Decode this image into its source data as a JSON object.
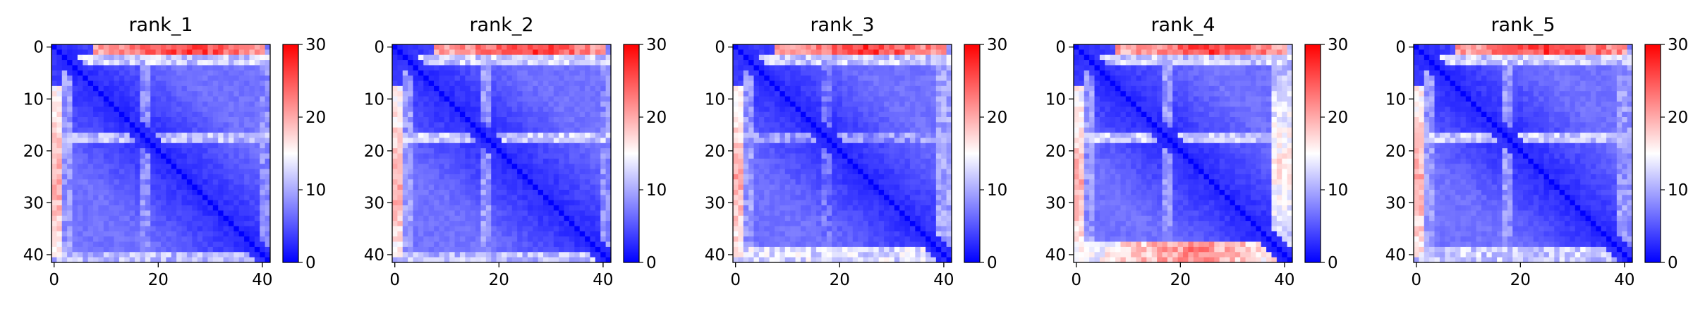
{
  "colorbar": {
    "colormap": "bwr",
    "color_low": "#0000ff",
    "color_mid": "#ffffff",
    "color_high": "#ff0000",
    "vmin": 0,
    "vmax": 30,
    "ticks": [
      "0",
      "10",
      "20",
      "30"
    ]
  },
  "chart_data": [
    {
      "type": "heatmap",
      "title": "rank_1",
      "n": 42,
      "xlim": [
        -0.5,
        41.5
      ],
      "ylim": [
        41.5,
        -0.5
      ],
      "xticks": [
        "0",
        "20",
        "40"
      ],
      "yticks": [
        "0",
        "10",
        "20",
        "30",
        "40"
      ],
      "bands": [
        {
          "row_start": 0,
          "row_end": 1,
          "col_start": 8,
          "col_end": 40,
          "value": 20,
          "peak": 27
        },
        {
          "row_start": 2,
          "row_end": 3,
          "col_start": 5,
          "col_end": 41,
          "value": 12
        },
        {
          "row_start": 17,
          "row_end": 18,
          "col_start": 0,
          "col_end": 41,
          "value": 11
        },
        {
          "row_start": 40,
          "row_end": 41,
          "col_start": 0,
          "col_end": 41,
          "value": 11
        }
      ]
    },
    {
      "type": "heatmap",
      "title": "rank_2",
      "n": 42,
      "xlim": [
        -0.5,
        41.5
      ],
      "ylim": [
        41.5,
        -0.5
      ],
      "xticks": [
        "0",
        "20",
        "40"
      ],
      "yticks": [
        "0",
        "10",
        "20",
        "30",
        "40"
      ],
      "bands": [
        {
          "row_start": 0,
          "row_end": 1,
          "col_start": 8,
          "col_end": 40,
          "value": 20,
          "peak": 27
        },
        {
          "row_start": 2,
          "row_end": 3,
          "col_start": 5,
          "col_end": 41,
          "value": 12
        },
        {
          "row_start": 17,
          "row_end": 18,
          "col_start": 0,
          "col_end": 41,
          "value": 12
        },
        {
          "row_start": 40,
          "row_end": 41,
          "col_start": 0,
          "col_end": 41,
          "value": 11
        }
      ]
    },
    {
      "type": "heatmap",
      "title": "rank_3",
      "n": 42,
      "xlim": [
        -0.5,
        41.5
      ],
      "ylim": [
        41.5,
        -0.5
      ],
      "xticks": [
        "0",
        "20",
        "40"
      ],
      "yticks": [
        "0",
        "10",
        "20",
        "30",
        "40"
      ],
      "bands": [
        {
          "row_start": 0,
          "row_end": 1,
          "col_start": 8,
          "col_end": 40,
          "value": 20,
          "peak": 27
        },
        {
          "row_start": 2,
          "row_end": 3,
          "col_start": 5,
          "col_end": 41,
          "value": 12
        },
        {
          "row_start": 17,
          "row_end": 18,
          "col_start": 0,
          "col_end": 41,
          "value": 9
        },
        {
          "row_start": 39,
          "row_end": 41,
          "col_start": 0,
          "col_end": 41,
          "value": 13
        }
      ]
    },
    {
      "type": "heatmap",
      "title": "rank_4",
      "n": 42,
      "xlim": [
        -0.5,
        41.5
      ],
      "ylim": [
        41.5,
        -0.5
      ],
      "xticks": [
        "0",
        "20",
        "40"
      ],
      "yticks": [
        "0",
        "10",
        "20",
        "30",
        "40"
      ],
      "bands": [
        {
          "row_start": 0,
          "row_end": 1,
          "col_start": 8,
          "col_end": 40,
          "value": 20,
          "peak": 27
        },
        {
          "row_start": 2,
          "row_end": 3,
          "col_start": 5,
          "col_end": 41,
          "value": 12
        },
        {
          "row_start": 17,
          "row_end": 18,
          "col_start": 0,
          "col_end": 41,
          "value": 12
        },
        {
          "row_start": 38,
          "row_end": 41,
          "col_start": 0,
          "col_end": 41,
          "value": 14,
          "peak": 22
        }
      ]
    },
    {
      "type": "heatmap",
      "title": "rank_5",
      "n": 42,
      "xlim": [
        -0.5,
        41.5
      ],
      "ylim": [
        41.5,
        -0.5
      ],
      "xticks": [
        "0",
        "20",
        "40"
      ],
      "yticks": [
        "0",
        "10",
        "20",
        "30",
        "40"
      ],
      "bands": [
        {
          "row_start": 0,
          "row_end": 1,
          "col_start": 8,
          "col_end": 40,
          "value": 20,
          "peak": 27
        },
        {
          "row_start": 2,
          "row_end": 3,
          "col_start": 5,
          "col_end": 41,
          "value": 12
        },
        {
          "row_start": 17,
          "row_end": 18,
          "col_start": 0,
          "col_end": 41,
          "value": 12
        },
        {
          "row_start": 39,
          "row_end": 41,
          "col_start": 0,
          "col_end": 41,
          "value": 12
        }
      ]
    }
  ]
}
